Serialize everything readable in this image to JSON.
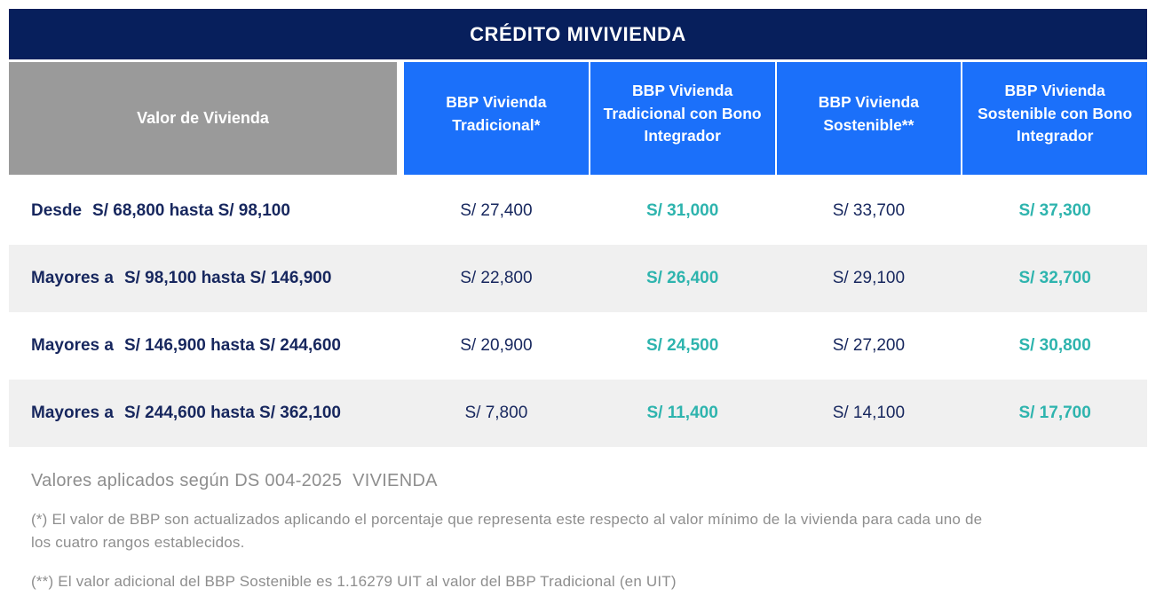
{
  "table": {
    "title": "CRÉDITO MIVIVIENDA",
    "columns": [
      "Valor de Vivienda",
      "BBP Vivienda Tradicional*",
      "BBP Vivienda Tradicional con Bono Integrador",
      "BBP Vivienda Sostenible**",
      "BBP Vivienda Sostenible con Bono Integrador"
    ],
    "rows": [
      {
        "prefix": "Desde",
        "range": "S/ 68,800 hasta S/ 98,100",
        "values": [
          "S/ 27,400",
          "S/ 31,000",
          "S/ 33,700",
          "S/ 37,300"
        ]
      },
      {
        "prefix": "Mayores a",
        "range": "S/ 98,100 hasta S/ 146,900",
        "values": [
          "S/ 22,800",
          "S/ 26,400",
          "S/ 29,100",
          "S/ 32,700"
        ]
      },
      {
        "prefix": "Mayores a",
        "range": "S/ 146,900 hasta S/ 244,600",
        "values": [
          "S/ 20,900",
          "S/ 24,500",
          "S/ 27,200",
          "S/ 30,800"
        ]
      },
      {
        "prefix": "Mayores a",
        "range": "S/ 244,600 hasta S/ 362,100",
        "values": [
          "S/ 7,800",
          "S/ 11,400",
          "S/ 14,100",
          "S/ 17,700"
        ]
      }
    ]
  },
  "notes": {
    "source": "Valores aplicados según DS 004-2025  VIVIENDA",
    "footnote1": "(*) El valor de BBP son actualizados aplicando el porcentaje que representa este respecto al valor mínimo de la vivienda para cada uno de los cuatro rangos establecidos.",
    "footnote2": "(**) El valor adicional del BBP Sostenible es 1.16279 UIT al valor del BBP Tradicional (en UIT)"
  },
  "colors": {
    "title_bg": "#071F5C",
    "header_blue": "#1B70FA",
    "header_gray": "#9A9A9A",
    "accent_teal": "#2EB4AE",
    "text_navy": "#17275E",
    "row_alt_bg": "#F0F0F0",
    "note_gray": "#8E8E8E"
  }
}
